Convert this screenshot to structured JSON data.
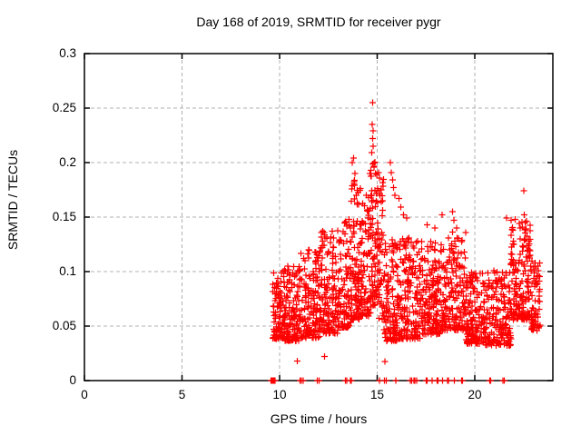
{
  "window": {
    "background": "#ffffff",
    "foreground": "#000000"
  },
  "chart_data": {
    "type": "scatter",
    "title": "Day 168 of 2019, SRMTID for receiver pygr",
    "xlabel": "GPS time / hours",
    "ylabel": "SRMTID / TECUs",
    "xlim": [
      0,
      24
    ],
    "ylim": [
      0,
      0.3
    ],
    "x_tick_values": [
      0,
      5,
      10,
      15,
      20
    ],
    "x_tick_labels": [
      "0",
      "5",
      "10",
      "15",
      "20"
    ],
    "y_tick_values": [
      0,
      0.05,
      0.1,
      0.15,
      0.2,
      0.25,
      0.3
    ],
    "y_tick_labels": [
      "0",
      "0.05",
      "0.1",
      "0.15",
      "0.2",
      "0.25",
      "0.3"
    ],
    "grid": {
      "show": true,
      "style": "dashed",
      "color": "#b0b0b0"
    },
    "legend": "none",
    "marker": {
      "shape": "plus",
      "color": "#ff0000",
      "size": 7,
      "stroke_width": 1.2
    },
    "series_name": "SRMTID",
    "data_x_range": [
      9.55,
      23.35
    ],
    "data_y_max": 0.255,
    "seed": 168,
    "zero_line_xs": [
      9.56,
      9.58,
      9.6,
      9.62,
      9.64,
      9.66,
      9.68,
      9.7,
      9.72,
      9.74,
      9.76,
      11.05,
      11.12,
      11.22,
      11.92,
      12.02,
      13.38,
      13.44,
      13.62,
      13.68,
      15.12,
      15.38,
      15.46,
      15.95,
      16.7,
      16.76,
      16.88,
      16.94,
      17.02,
      17.5,
      17.56,
      17.82,
      18.06,
      18.12,
      18.36,
      18.6,
      18.66,
      18.95,
      19.32,
      19.38,
      20.76,
      20.82,
      21.44,
      21.52
    ],
    "outlier_points": [
      [
        10.9,
        0.018
      ],
      [
        12.3,
        0.022
      ],
      [
        15.4,
        0.0175
      ],
      [
        12.2,
        0.137
      ],
      [
        12.22,
        0.128
      ],
      [
        12.18,
        0.122
      ],
      [
        13.73,
        0.2
      ],
      [
        13.79,
        0.204
      ],
      [
        13.85,
        0.19
      ],
      [
        13.92,
        0.17
      ],
      [
        13.97,
        0.163
      ],
      [
        14.45,
        0.17
      ],
      [
        14.55,
        0.168
      ],
      [
        14.76,
        0.255
      ],
      [
        14.74,
        0.235
      ],
      [
        14.78,
        0.229
      ],
      [
        14.76,
        0.222
      ],
      [
        14.79,
        0.215
      ],
      [
        14.73,
        0.209
      ],
      [
        14.62,
        0.19
      ],
      [
        14.68,
        0.193
      ],
      [
        14.83,
        0.196
      ],
      [
        14.9,
        0.19
      ],
      [
        14.97,
        0.189
      ],
      [
        15.08,
        0.191
      ],
      [
        15.12,
        0.186
      ],
      [
        15.68,
        0.2
      ],
      [
        15.73,
        0.191
      ],
      [
        15.78,
        0.184
      ],
      [
        15.84,
        0.177
      ],
      [
        15.9,
        0.17
      ],
      [
        16.12,
        0.167
      ],
      [
        16.22,
        0.159
      ],
      [
        16.36,
        0.152
      ],
      [
        16.5,
        0.149
      ],
      [
        17.55,
        0.143
      ],
      [
        17.95,
        0.14
      ],
      [
        18.32,
        0.152
      ],
      [
        18.86,
        0.155
      ],
      [
        18.92,
        0.147
      ],
      [
        19.06,
        0.14
      ],
      [
        21.62,
        0.149
      ],
      [
        21.87,
        0.147
      ],
      [
        22.32,
        0.14
      ],
      [
        22.5,
        0.174
      ],
      [
        22.54,
        0.152
      ],
      [
        22.58,
        0.145
      ],
      [
        22.62,
        0.139
      ]
    ],
    "band_clusters": [
      {
        "x0": 9.65,
        "x1": 10.15,
        "n": 80,
        "y_lo": 0.033,
        "y_hi": 0.102,
        "skew": 1.6
      },
      {
        "x0": 10.15,
        "x1": 11.05,
        "n": 140,
        "y_lo": 0.03,
        "y_hi": 0.105,
        "skew": 1.6
      },
      {
        "x0": 11.05,
        "x1": 12.05,
        "n": 150,
        "y_lo": 0.032,
        "y_hi": 0.122,
        "skew": 1.7
      },
      {
        "x0": 12.05,
        "x1": 13.05,
        "n": 150,
        "y_lo": 0.035,
        "y_hi": 0.138,
        "skew": 1.8
      },
      {
        "x0": 13.05,
        "x1": 13.65,
        "n": 90,
        "y_lo": 0.04,
        "y_hi": 0.148,
        "skew": 1.7
      },
      {
        "x0": 13.65,
        "x1": 14.15,
        "n": 95,
        "y_lo": 0.045,
        "y_hi": 0.185,
        "skew": 1.8
      },
      {
        "x0": 14.15,
        "x1": 14.65,
        "n": 85,
        "y_lo": 0.05,
        "y_hi": 0.165,
        "skew": 1.5
      },
      {
        "x0": 14.65,
        "x1": 15.05,
        "n": 75,
        "y_lo": 0.055,
        "y_hi": 0.205,
        "skew": 1.4
      },
      {
        "x0": 15.05,
        "x1": 15.35,
        "n": 45,
        "y_lo": 0.045,
        "y_hi": 0.185,
        "skew": 1.6
      },
      {
        "x0": 15.35,
        "x1": 16.05,
        "n": 115,
        "y_lo": 0.028,
        "y_hi": 0.132,
        "skew": 1.6
      },
      {
        "x0": 16.05,
        "x1": 17.25,
        "n": 175,
        "y_lo": 0.03,
        "y_hi": 0.132,
        "skew": 1.7
      },
      {
        "x0": 17.25,
        "x1": 18.25,
        "n": 155,
        "y_lo": 0.035,
        "y_hi": 0.128,
        "skew": 1.6
      },
      {
        "x0": 18.25,
        "x1": 19.55,
        "n": 185,
        "y_lo": 0.038,
        "y_hi": 0.138,
        "skew": 1.7
      },
      {
        "x0": 19.55,
        "x1": 20.55,
        "n": 150,
        "y_lo": 0.028,
        "y_hi": 0.1,
        "skew": 1.5
      },
      {
        "x0": 20.55,
        "x1": 21.85,
        "n": 175,
        "y_lo": 0.026,
        "y_hi": 0.102,
        "skew": 1.5
      },
      {
        "x0": 21.85,
        "x1": 22.85,
        "n": 155,
        "y_lo": 0.048,
        "y_hi": 0.148,
        "skew": 1.5
      },
      {
        "x0": 22.85,
        "x1": 23.35,
        "n": 65,
        "y_lo": 0.04,
        "y_hi": 0.112,
        "skew": 1.5
      }
    ]
  }
}
